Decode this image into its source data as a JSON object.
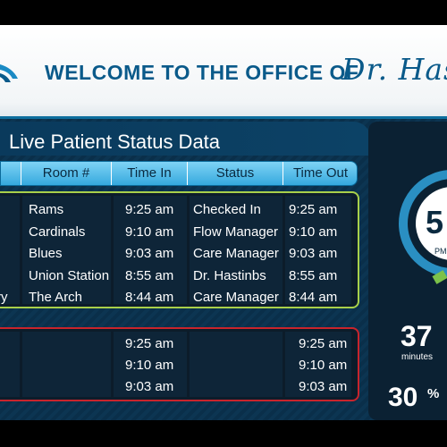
{
  "header": {
    "welcome": "WELCOME TO THE OFFICE OF",
    "doctor": "Dr. Has"
  },
  "panel": {
    "title": "Live Patient Status Data"
  },
  "columns": {
    "room": "Room #",
    "time_in": "Time In",
    "status": "Status",
    "time_out": "Time Out"
  },
  "active_rows": [
    {
      "name": "",
      "room": "Rams",
      "time_in": "9:25 am",
      "status": "Checked In",
      "time_out": "9:25 am"
    },
    {
      "name": "",
      "room": "Cardinals",
      "time_in": "9:10 am",
      "status": "Flow Manager",
      "time_out": "9:10 am"
    },
    {
      "name": "",
      "room": "Blues",
      "time_in": "9:03 am",
      "status": "Care Manager",
      "time_out": "9:03 am"
    },
    {
      "name": "",
      "room": "Union Station",
      "time_in": "8:55 am",
      "status": "Dr. Hastinbs",
      "time_out": "8:55 am"
    },
    {
      "name": "ry",
      "room": "The Arch",
      "time_in": "8:44 am",
      "status": "Care Manager",
      "time_out": "8:44 am"
    }
  ],
  "waiting_rows": [
    {
      "time_in": "9:25 am",
      "time_out": "9:25 am"
    },
    {
      "time_in": "9:10 am",
      "time_out": "9:10 am"
    },
    {
      "time_in": "9:03 am",
      "time_out": "9:03 am"
    }
  ],
  "side": {
    "clock": "5",
    "ampm": "PM",
    "wait_value": "37",
    "wait_label": "minutes",
    "pct_value": "30",
    "pct_sign": "%"
  },
  "colors": {
    "accent": "#35a9de",
    "active_border": "#a8d04a",
    "waiting_border": "#c8242c"
  }
}
